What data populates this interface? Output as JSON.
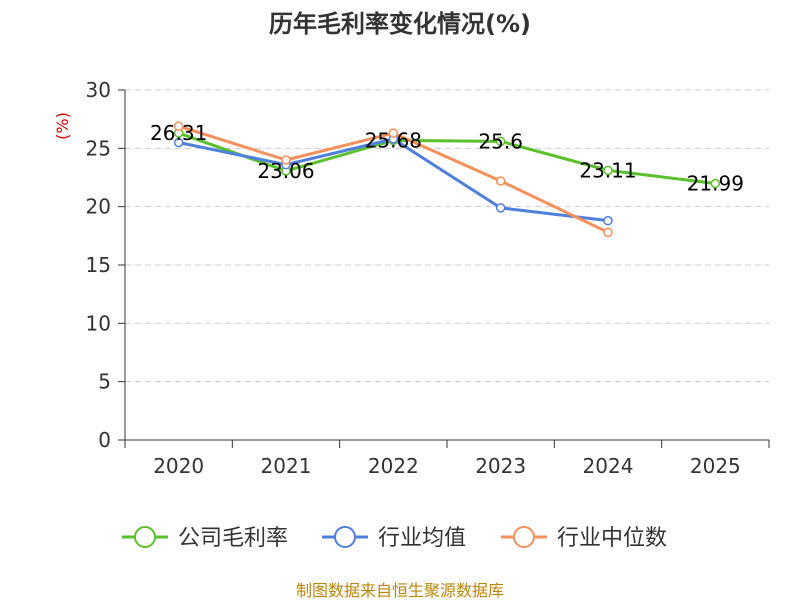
{
  "chart_data": {
    "type": "line",
    "title": "历年毛利率变化情况(%)",
    "ylabel": "(%)",
    "xlabel": "",
    "ylim": [
      0,
      30
    ],
    "yticks": [
      "0",
      "5",
      "10",
      "15",
      "20",
      "25",
      "30"
    ],
    "categories": [
      "2020",
      "2021",
      "2022",
      "2023",
      "2024",
      "2025"
    ],
    "grid": true,
    "legend_position": "bottom",
    "series": [
      {
        "name": "公司毛利率",
        "color": "#5ac12d",
        "values": [
          26.31,
          23.06,
          25.68,
          25.6,
          23.11,
          21.99
        ],
        "labels": [
          "26.31",
          "23.06",
          "25.68",
          "25.6",
          "23.11",
          "21.99"
        ]
      },
      {
        "name": "行业均值",
        "color": "#4e7fdc",
        "values": [
          25.5,
          23.6,
          25.8,
          19.9,
          18.8,
          null
        ]
      },
      {
        "name": "行业中位数",
        "color": "#f5905b",
        "values": [
          26.9,
          24.0,
          26.3,
          22.2,
          17.8,
          null
        ]
      }
    ],
    "source": "制图数据来自恒生聚源数据库",
    "unit_color": "#cc0000",
    "source_color": "#b8860b"
  }
}
